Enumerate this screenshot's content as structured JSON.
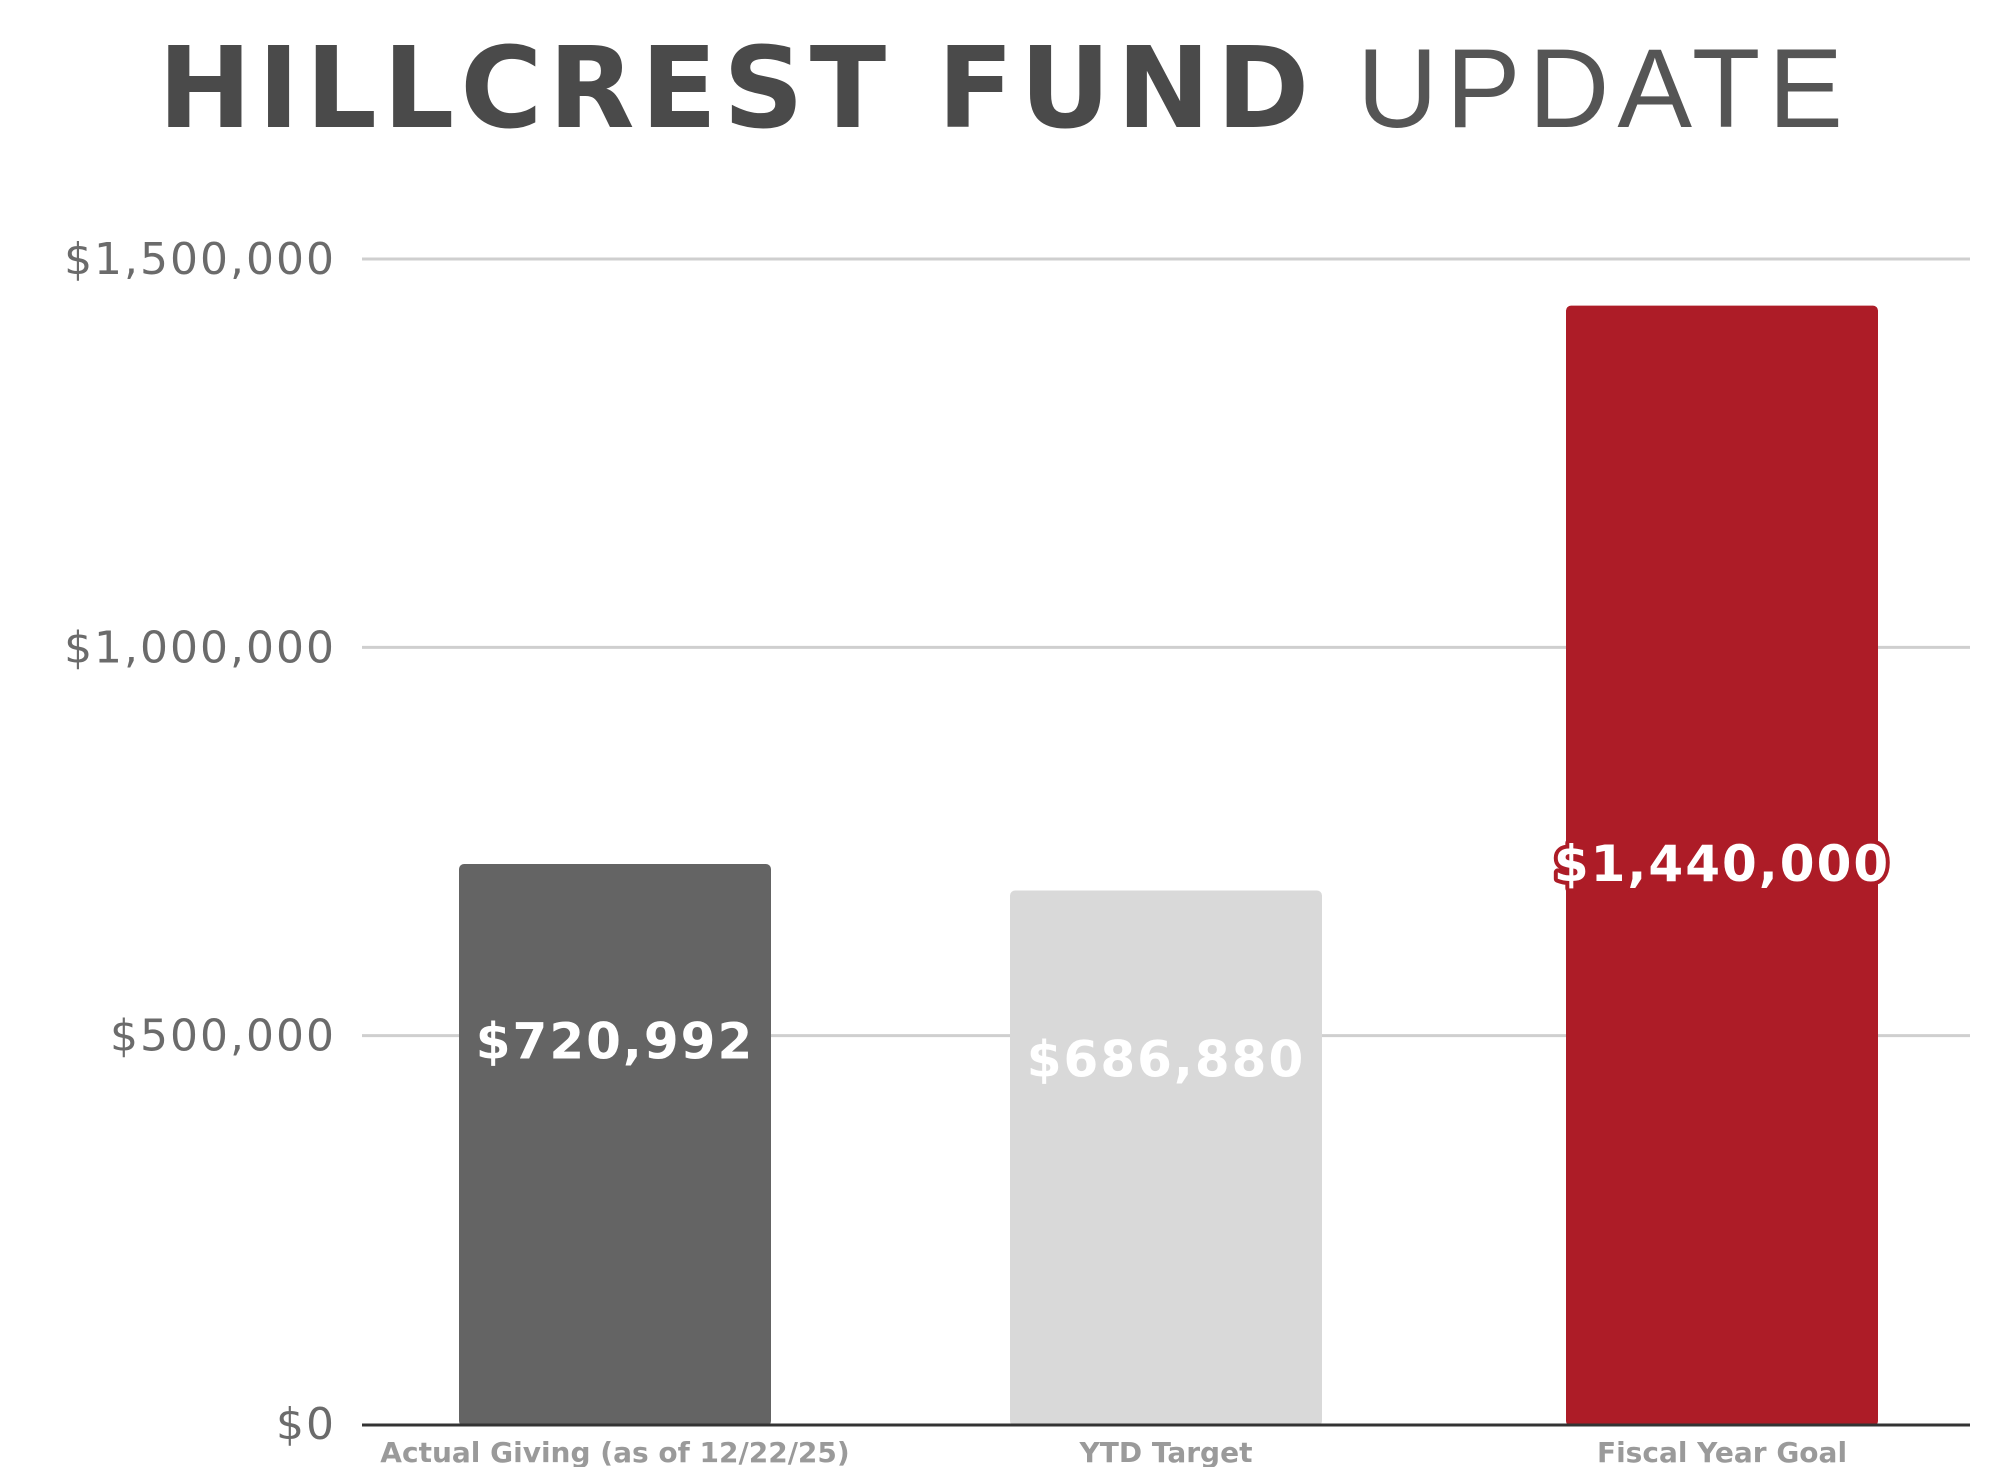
{
  "chart_data": {
    "type": "bar",
    "title_bold": "HILLCREST FUND",
    "title_light": "UPDATE",
    "categories": [
      "Actual Giving (as of 12/22/25)",
      "YTD Target",
      "Fiscal Year Goal"
    ],
    "values": [
      720992,
      686880,
      1440000
    ],
    "value_labels": [
      "$720,992",
      "$686,880",
      "$1,440,000"
    ],
    "bar_colors": [
      "#646464",
      "#d9d9d9",
      "#ad1c27"
    ],
    "ylim": [
      0,
      1500000
    ],
    "yticks": [
      0,
      500000,
      1000000,
      1500000
    ],
    "ytick_labels": [
      "$0",
      "$500,000",
      "$1,000,000",
      "$1,500,000"
    ],
    "grid": true,
    "legend": "none"
  }
}
